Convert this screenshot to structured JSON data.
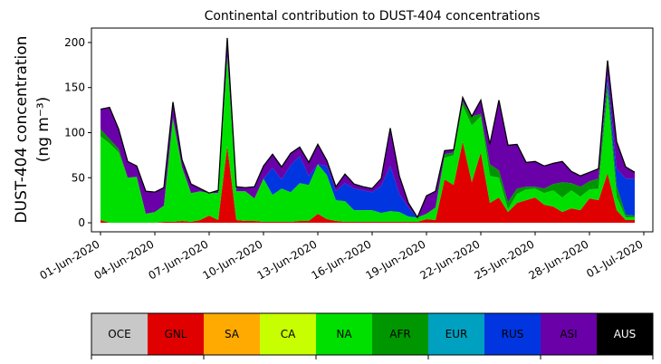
{
  "chart_data": {
    "type": "area",
    "title": "Continental contribution to DUST-404 concentrations",
    "ylabel_line1": "DUST-404 concentration",
    "ylabel_line2": "(ng m⁻³)",
    "xlabel": "",
    "ylim": [
      -10,
      216
    ],
    "yticks": [
      0,
      50,
      100,
      150,
      200
    ],
    "x": [
      "2020-06-01",
      "2020-06-01T12",
      "2020-06-02",
      "2020-06-02T12",
      "2020-06-03",
      "2020-06-03T12",
      "2020-06-04",
      "2020-06-04T12",
      "2020-06-05",
      "2020-06-05T12",
      "2020-06-06",
      "2020-06-06T12",
      "2020-06-07",
      "2020-06-07T12",
      "2020-06-08",
      "2020-06-08T12",
      "2020-06-09",
      "2020-06-09T12",
      "2020-06-10",
      "2020-06-10T12",
      "2020-06-11",
      "2020-06-11T12",
      "2020-06-12",
      "2020-06-12T12",
      "2020-06-13",
      "2020-06-13T12",
      "2020-06-14",
      "2020-06-14T12",
      "2020-06-15",
      "2020-06-15T12",
      "2020-06-16",
      "2020-06-16T12",
      "2020-06-17",
      "2020-06-17T12",
      "2020-06-18",
      "2020-06-18T12",
      "2020-06-19",
      "2020-06-19T12",
      "2020-06-20",
      "2020-06-20T12",
      "2020-06-21",
      "2020-06-21T12",
      "2020-06-22",
      "2020-06-22T12",
      "2020-06-23",
      "2020-06-23T12",
      "2020-06-24",
      "2020-06-24T12",
      "2020-06-25",
      "2020-06-25T12",
      "2020-06-26",
      "2020-06-26T12",
      "2020-06-27",
      "2020-06-27T12",
      "2020-06-28",
      "2020-06-28T12",
      "2020-06-29",
      "2020-06-29T12",
      "2020-06-30",
      "2020-06-30T12"
    ],
    "xticks": [
      "01-Jun-2020",
      "04-Jun-2020",
      "07-Jun-2020",
      "10-Jun-2020",
      "13-Jun-2020",
      "16-Jun-2020",
      "19-Jun-2020",
      "22-Jun-2020",
      "25-Jun-2020",
      "28-Jun-2020",
      "01-Jul-2020"
    ],
    "series": [
      {
        "name": "GNL",
        "color": "#e00000",
        "values": [
          3,
          0,
          0,
          0,
          0,
          0,
          0,
          1,
          1,
          2,
          1,
          3,
          8,
          3,
          85,
          3,
          2,
          2,
          1,
          1,
          1,
          1,
          2,
          2,
          10,
          4,
          2,
          1,
          1,
          1,
          1,
          1,
          1,
          1,
          1,
          1,
          4,
          3,
          48,
          42,
          90,
          45,
          78,
          22,
          28,
          12,
          22,
          25,
          28,
          20,
          18,
          12,
          16,
          14,
          27,
          25,
          55,
          14,
          3,
          3
        ]
      },
      {
        "name": "NA",
        "color": "#00e000",
        "values": [
          93,
          88,
          78,
          50,
          51,
          10,
          12,
          18,
          115,
          60,
          32,
          32,
          25,
          30,
          100,
          32,
          33,
          25,
          48,
          30,
          37,
          33,
          42,
          40,
          55,
          49,
          23,
          23,
          13,
          13,
          13,
          10,
          12,
          11,
          6,
          5,
          6,
          14,
          24,
          33,
          40,
          63,
          40,
          30,
          22,
          3,
          10,
          12,
          10,
          13,
          18,
          16,
          20,
          15,
          10,
          13,
          90,
          15,
          3,
          3
        ]
      },
      {
        "name": "AFR",
        "color": "#009600",
        "values": [
          8,
          5,
          4,
          0,
          0,
          0,
          0,
          0,
          0,
          0,
          0,
          0,
          0,
          0,
          0,
          0,
          0,
          0,
          0,
          0,
          0,
          0,
          0,
          0,
          0,
          0,
          0,
          0,
          0,
          0,
          0,
          0,
          0,
          0,
          0,
          0,
          0,
          0,
          4,
          3,
          4,
          10,
          3,
          13,
          8,
          8,
          6,
          3,
          2,
          5,
          7,
          17,
          8,
          11,
          9,
          11,
          10,
          12,
          3,
          2
        ]
      },
      {
        "name": "RUS",
        "color": "#0035e0",
        "values": [
          0,
          0,
          0,
          0,
          0,
          0,
          0,
          0,
          0,
          0,
          0,
          0,
          0,
          0,
          0,
          0,
          0,
          0,
          0,
          30,
          10,
          30,
          30,
          10,
          0,
          10,
          10,
          20,
          24,
          22,
          20,
          30,
          50,
          20,
          10,
          0,
          0,
          0,
          0,
          0,
          0,
          0,
          0,
          0,
          0,
          0,
          0,
          0,
          0,
          0,
          0,
          0,
          0,
          0,
          0,
          0,
          8,
          19,
          40,
          41
        ]
      },
      {
        "name": "ASI",
        "color": "#6a00a8",
        "values": [
          22,
          35,
          22,
          18,
          12,
          25,
          22,
          20,
          18,
          8,
          10,
          3,
          0,
          3,
          20,
          5,
          4,
          13,
          14,
          15,
          14,
          13,
          10,
          15,
          22,
          6,
          5,
          10,
          5,
          4,
          4,
          8,
          42,
          20,
          5,
          0,
          20,
          18,
          4,
          3,
          5,
          0,
          15,
          22,
          78,
          63,
          49,
          27,
          28,
          25,
          23,
          23,
          13,
          12,
          10,
          11,
          17,
          30,
          13,
          7
        ]
      }
    ],
    "total_line_color": "#000000",
    "grid": false,
    "legend_placement": "bottom colorbar",
    "legend": [
      {
        "name": "OCE",
        "color": "#c8c8c8",
        "text_color": "#000000"
      },
      {
        "name": "GNL",
        "color": "#e00000",
        "text_color": "#000000"
      },
      {
        "name": "SA",
        "color": "#ffaa00",
        "text_color": "#000000"
      },
      {
        "name": "CA",
        "color": "#c8ff00",
        "text_color": "#000000"
      },
      {
        "name": "NA",
        "color": "#00e000",
        "text_color": "#000000"
      },
      {
        "name": "AFR",
        "color": "#009600",
        "text_color": "#000000"
      },
      {
        "name": "EUR",
        "color": "#00a0c0",
        "text_color": "#000000"
      },
      {
        "name": "RUS",
        "color": "#0035e0",
        "text_color": "#000000"
      },
      {
        "name": "ASI",
        "color": "#6a00a8",
        "text_color": "#000000"
      },
      {
        "name": "AUS",
        "color": "#000000",
        "text_color": "#ffffff"
      }
    ]
  }
}
